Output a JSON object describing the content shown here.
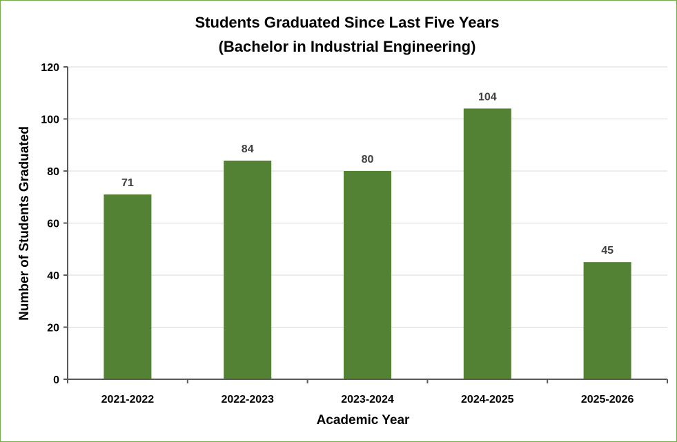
{
  "chart_data": {
    "type": "bar",
    "title": "Students Graduated Since Last Five Years",
    "subtitle": "(Bachelor in Industrial Engineering)",
    "xlabel": "Academic Year",
    "ylabel": "Number of Students Graduated",
    "categories": [
      "2021-2022",
      "2022-2023",
      "2023-2024",
      "2024-2025",
      "2025-2026"
    ],
    "values": [
      71,
      84,
      80,
      104,
      45
    ],
    "ylim": [
      0,
      120
    ],
    "yticks": [
      0,
      20,
      40,
      60,
      80,
      100,
      120
    ],
    "grid": true,
    "legend": "none",
    "bar_color": "#548235",
    "border_color": "#70ad47"
  }
}
